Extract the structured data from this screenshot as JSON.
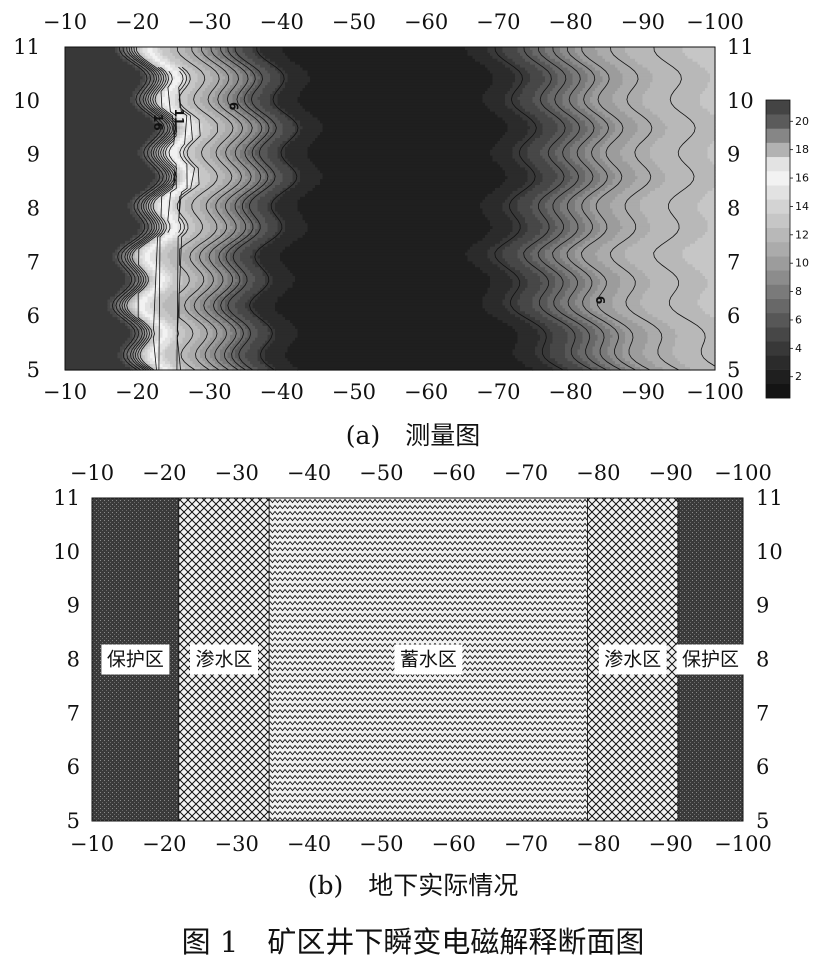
{
  "figure_caption": "图 1　矿区井下瞬变电磁解释断面图",
  "chart_data": [
    {
      "type": "heatmap",
      "panel": "(a)",
      "caption": "(a)　测量图",
      "x_ticks": [
        "−10",
        "−20",
        "−30",
        "−40",
        "−50",
        "−60",
        "−70",
        "−80",
        "−90",
        "−100"
      ],
      "y_ticks": [
        "5",
        "6",
        "7",
        "8",
        "9",
        "10",
        "11"
      ],
      "xlim": [
        -10,
        -100
      ],
      "ylim": [
        5,
        11
      ],
      "colorbar": {
        "ticks": [
          "2",
          "4",
          "6",
          "8",
          "10",
          "12",
          "14",
          "16",
          "18",
          "20"
        ],
        "range": [
          1,
          21
        ],
        "levels": [
          {
            "value": 1,
            "color": "#141414"
          },
          {
            "value": 2,
            "color": "#1f1f1f"
          },
          {
            "value": 3,
            "color": "#2b2b2b"
          },
          {
            "value": 4,
            "color": "#383838"
          },
          {
            "value": 5,
            "color": "#474747"
          },
          {
            "value": 6,
            "color": "#575757"
          },
          {
            "value": 7,
            "color": "#686868"
          },
          {
            "value": 8,
            "color": "#7a7a7a"
          },
          {
            "value": 9,
            "color": "#8c8c8c"
          },
          {
            "value": 10,
            "color": "#9c9c9c"
          },
          {
            "value": 11,
            "color": "#ababab"
          },
          {
            "value": 12,
            "color": "#b8b8b8"
          },
          {
            "value": 13,
            "color": "#c6c6c6"
          },
          {
            "value": 14,
            "color": "#d3d3d3"
          },
          {
            "value": 15,
            "color": "#e2e2e2"
          },
          {
            "value": 16,
            "color": "#f2f2f2"
          },
          {
            "value": 17,
            "color": "#e3e3e3"
          },
          {
            "value": 18,
            "color": "#b2b2b2"
          },
          {
            "value": 19,
            "color": "#868686"
          },
          {
            "value": 20,
            "color": "#5b5b5b"
          },
          {
            "value": 21,
            "color": "#444444"
          }
        ]
      },
      "contour_labels": [
        "16",
        "11",
        "6",
        "6"
      ],
      "profile": {
        "x": [
          -10,
          -19,
          -20,
          -21,
          -22,
          -23,
          -24,
          -25,
          -26,
          -28,
          -30,
          -32,
          -34,
          -36,
          -38,
          -40,
          -45,
          -50,
          -55,
          -60,
          -65,
          -68,
          -70,
          -72,
          -74,
          -76,
          -78,
          -80,
          -82,
          -84,
          -86,
          -88,
          -90,
          -92,
          -94,
          -96,
          -98,
          -100
        ],
        "values": [
          4,
          4,
          6,
          8,
          11,
          14,
          16,
          15,
          13,
          12,
          11,
          9.5,
          8,
          6,
          5,
          3,
          2,
          1.5,
          1.5,
          1.5,
          2,
          2.5,
          3,
          4,
          5,
          6,
          7,
          8,
          9,
          10,
          10.5,
          11,
          11.5,
          11.5,
          12,
          12,
          12.5,
          12.5
        ]
      }
    },
    {
      "type": "map",
      "panel": "(b)",
      "caption": "(b)　地下实际情况",
      "x_ticks": [
        "−10",
        "−20",
        "−30",
        "−40",
        "−50",
        "−60",
        "−70",
        "−80",
        "−90",
        "−100"
      ],
      "y_ticks": [
        "5",
        "6",
        "7",
        "8",
        "9",
        "10",
        "11"
      ],
      "xlim": [
        -10,
        -100
      ],
      "ylim": [
        5,
        11
      ],
      "zones": [
        {
          "label": "保护区",
          "x_from": -10,
          "x_to": -22,
          "pattern": "dense-dots"
        },
        {
          "label": "渗水区",
          "x_from": -22,
          "x_to": -34.5,
          "pattern": "crosshatch"
        },
        {
          "label": "蓄水区",
          "x_from": -34.5,
          "x_to": -78.5,
          "pattern": "wave"
        },
        {
          "label": "渗水区",
          "x_from": -78.5,
          "x_to": -91,
          "pattern": "crosshatch"
        },
        {
          "label": "保护区",
          "x_from": -91,
          "x_to": -100,
          "pattern": "dense-dots"
        }
      ]
    }
  ]
}
